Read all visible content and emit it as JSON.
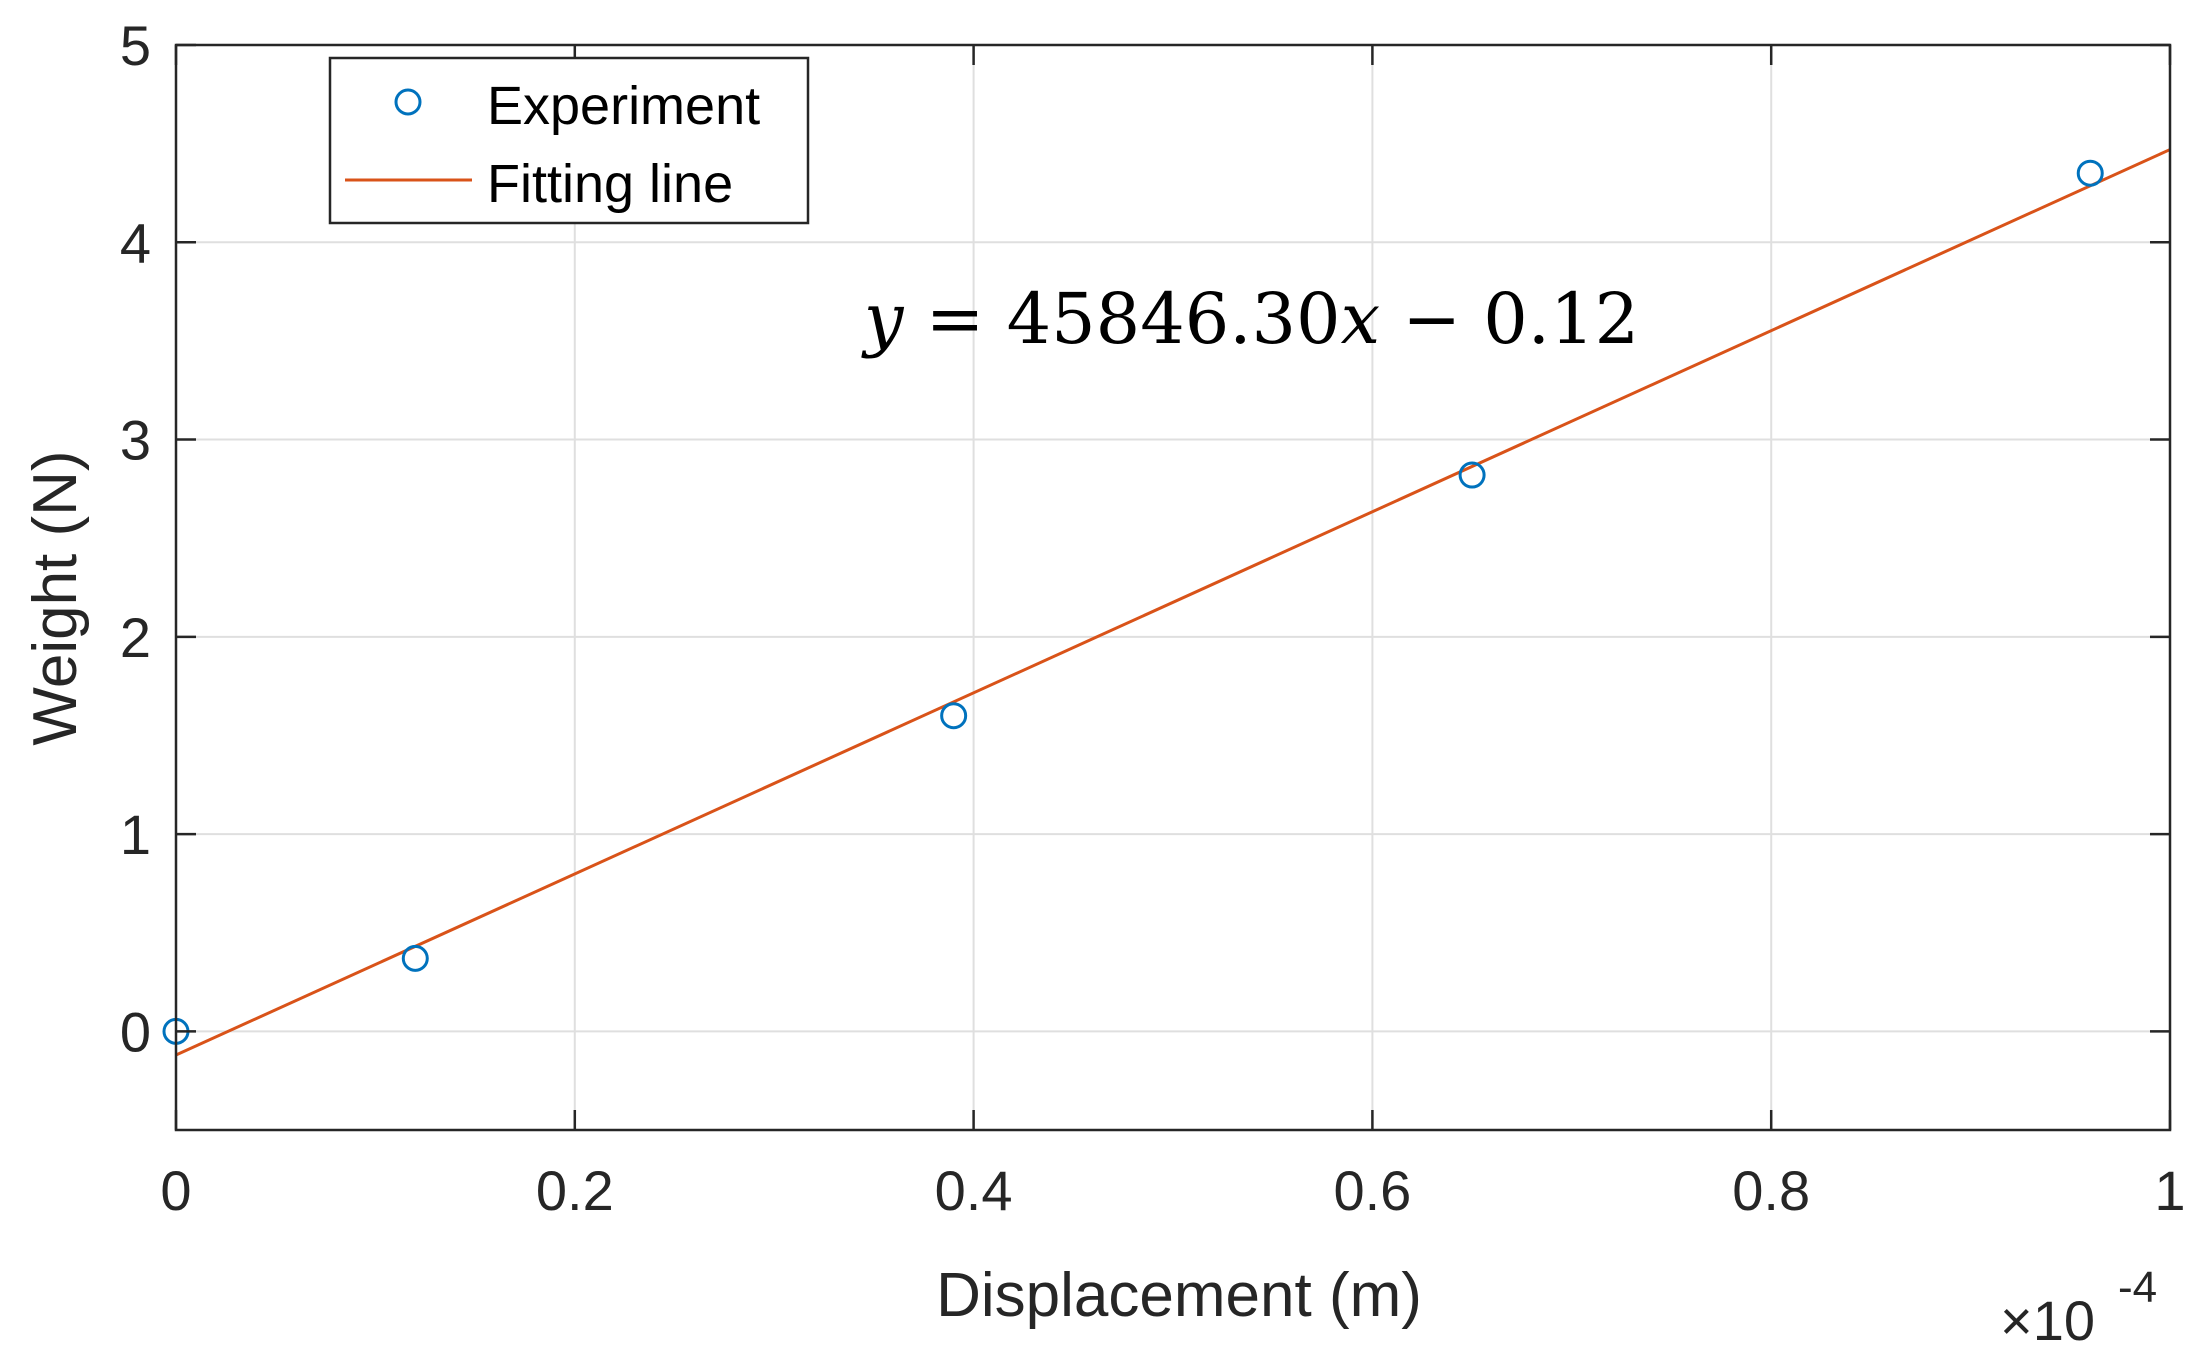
{
  "chart_data": {
    "type": "scatter",
    "title": "",
    "xlabel": "Displacement (m)",
    "ylabel": "Weight (N)",
    "xlim": [
      0,
      1
    ],
    "ylim": [
      -0.5,
      5
    ],
    "x_scale_exponent_label": "×10",
    "x_scale_exponent": "-4",
    "xticks": [
      0,
      0.2,
      0.4,
      0.6,
      0.8,
      1
    ],
    "xtick_labels": [
      "0",
      "0.2",
      "0.4",
      "0.6",
      "0.8",
      "1"
    ],
    "yticks": [
      0,
      1,
      2,
      3,
      4,
      5
    ],
    "ytick_labels": [
      "0",
      "1",
      "2",
      "3",
      "4",
      "5"
    ],
    "grid": true,
    "legend_position": "top-left",
    "series": [
      {
        "name": "Experiment",
        "kind": "scatter",
        "marker": "circle-open",
        "color": "#0072BD",
        "points": [
          {
            "x": 0,
            "y": 0
          },
          {
            "x": 0.12,
            "y": 0.37
          },
          {
            "x": 0.39,
            "y": 1.6
          },
          {
            "x": 0.65,
            "y": 2.82
          },
          {
            "x": 0.96,
            "y": 4.35
          }
        ]
      },
      {
        "name": "Fitting line",
        "kind": "line",
        "color": "#D95319",
        "points": [
          {
            "x": 0,
            "y": -0.12
          },
          {
            "x": 1,
            "y": 4.47
          }
        ]
      }
    ],
    "annotation": {
      "prefix": "y",
      "middle": " = 45846.30",
      "var": "x",
      "suffix": " − 0.12",
      "position_x": 0.35,
      "position_y": 3.6
    }
  },
  "colors": {
    "axis": "#262626",
    "grid": "#dfdfdf",
    "experiment": "#0072BD",
    "fit": "#D95319"
  }
}
